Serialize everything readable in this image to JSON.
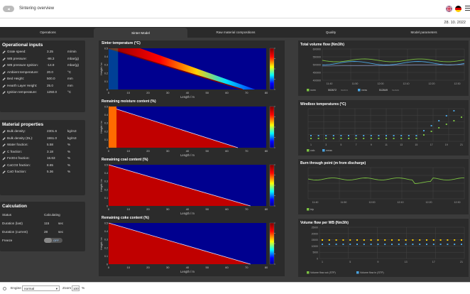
{
  "header": {
    "back_label": "◀",
    "title": "Sintering overview",
    "date": "28. 10. 2022"
  },
  "tabs": [
    {
      "label": "Operations",
      "active": false
    },
    {
      "label": "Sinter Model",
      "active": true
    },
    {
      "label": "Raw material compositions",
      "active": false
    },
    {
      "label": "Quality",
      "active": false
    },
    {
      "label": "Model parameters",
      "active": false
    }
  ],
  "operational": {
    "title": "Operational inputs",
    "rows": [
      {
        "label": "Grate speed:",
        "value": "3.25",
        "unit": "m/min"
      },
      {
        "label": "WB pressure:",
        "value": "-86.3",
        "unit": "mbar(g)"
      },
      {
        "label": "WB pressure Ignition:",
        "value": "-14.9",
        "unit": "mbar(g)"
      },
      {
        "label": "Ambient temperature:",
        "value": "20.0",
        "unit": "°C"
      },
      {
        "label": "Bed Height:",
        "value": "500.0",
        "unit": "mm"
      },
      {
        "label": "Hearth Layer Height:",
        "value": "25.0",
        "unit": "mm"
      },
      {
        "label": "Ignition temperature:",
        "value": "1250.0",
        "unit": "°C"
      }
    ]
  },
  "material": {
    "title": "Material properties",
    "rows": [
      {
        "label": "Bulk density:",
        "value": "2301.6",
        "unit": "kg/m3"
      },
      {
        "label": "Bulk density (DL):",
        "value": "1551.0",
        "unit": "kg/m3"
      },
      {
        "label": "Water fraction:",
        "value": "5.58",
        "unit": "%"
      },
      {
        "label": "C fraction:",
        "value": "3.18",
        "unit": "%"
      },
      {
        "label": "Fe3O4 fraction:",
        "value": "16.63",
        "unit": "%"
      },
      {
        "label": "CaCO3 fraction:",
        "value": "8.65",
        "unit": "%"
      },
      {
        "label": "CaO fraction:",
        "value": "5.36",
        "unit": "%"
      }
    ]
  },
  "calculation": {
    "title": "Calculation",
    "status_label": "Status",
    "status_value": "Calculating",
    "last_label": "Duration (last)",
    "last_value": "115",
    "last_unit": "sec",
    "current_label": "Duration (current)",
    "current_value": "28",
    "current_unit": "sec",
    "freeze_label": "Freeze",
    "freeze_value": "OFF"
  },
  "heatmaps": [
    {
      "title": "Sinter temperature (°C)",
      "type": "temp"
    },
    {
      "title": "Remaining moisture content (%)",
      "type": "moist"
    },
    {
      "title": "Remaining coal content (%)",
      "type": "coal"
    },
    {
      "title": "Remaining coke content (%)",
      "type": "coke"
    }
  ],
  "heat_axis": {
    "xlabel": "Length / m",
    "ylabel": "Height / m",
    "xticks": [
      "0",
      "10",
      "20",
      "30",
      "40",
      "50",
      "60",
      "70",
      "80"
    ],
    "yticks": [
      "0.5",
      "0.4",
      "0.3",
      "0.2",
      "0.1",
      "0"
    ]
  },
  "right": {
    "flow": {
      "title": "Total volume flow (Nm3/h)",
      "yticks": [
        "600000",
        "550000",
        "500000",
        "450000",
        "400000"
      ],
      "xticks": [
        "11:40",
        "11:50",
        "12:00",
        "12:10",
        "12:20",
        "12:30"
      ],
      "legend": [
        {
          "label": "norm",
          "value": "502672",
          "sub": "502672",
          "color": "#7bc142"
        },
        {
          "label": "mess",
          "value": "512649",
          "sub": "512649",
          "color": "#4aa3df"
        }
      ]
    },
    "windbox": {
      "title": "Windbox temperatures (°C)",
      "xticks": [
        "1",
        "3",
        "5",
        "7",
        "9",
        "11",
        "13",
        "15",
        "17",
        "19",
        "21"
      ],
      "legend": [
        {
          "label": "calc",
          "color": "#7bc142"
        },
        {
          "label": "meas",
          "color": "#4aa3df"
        }
      ]
    },
    "btp": {
      "title": "Burn through point (m from discharge)",
      "xticks": [
        "11:40",
        "11:50",
        "12:00",
        "12:10",
        "12:20",
        "12:30"
      ],
      "legend": [
        {
          "label": "btp",
          "color": "#7bc142"
        }
      ]
    },
    "wbflow": {
      "title": "Volume flow per WB (Nm3/h)",
      "yticks": [
        "25000",
        "20000",
        "15000",
        "10000",
        "5000",
        "0"
      ],
      "xticks": [
        "1",
        "5",
        "9",
        "13",
        "17",
        "21"
      ],
      "legend": [
        {
          "label": "Volume flow out (STP)",
          "color": "#7bc142"
        },
        {
          "label": "Volume flow in (STP)",
          "color": "#4aa3df"
        }
      ]
    }
  },
  "statusbar": {
    "engine_label": "Engine",
    "engine_value": "normal",
    "zoom_label": "Zoom",
    "zoom_value": "100",
    "zoom_unit": "%"
  }
}
